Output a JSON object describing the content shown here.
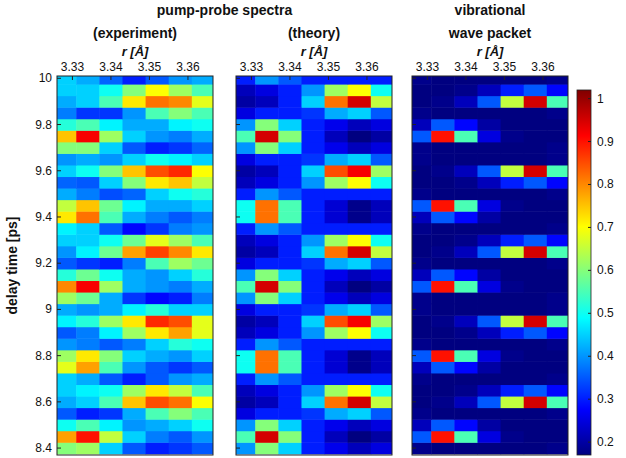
{
  "chart_data": {
    "type": "heatmap",
    "title": "pump-probe spectra",
    "y_label": "delay time [ps]",
    "xlim": [
      3.326,
      3.3665
    ],
    "xticks": [
      3.33,
      3.34,
      3.35,
      3.36
    ],
    "ylim": [
      8.37,
      10.01
    ],
    "yticks": [
      8.4,
      8.6,
      8.8,
      9,
      9.2,
      9.4,
      9.6,
      9.8,
      10
    ],
    "tick_labels": true,
    "colorbar": {
      "lim": [
        0.17,
        1.02
      ],
      "ticks": [
        0.2,
        0.3,
        0.4,
        0.5,
        0.6,
        0.7,
        0.8,
        0.9,
        1
      ]
    },
    "x": [
      3.328,
      3.334,
      3.34,
      3.346,
      3.352,
      3.358,
      3.364
    ],
    "y": [
      8.4,
      8.45,
      8.5,
      8.55,
      8.6,
      8.65,
      8.7,
      8.75,
      8.8,
      8.85,
      8.9,
      8.95,
      9.0,
      9.05,
      9.1,
      9.15,
      9.2,
      9.25,
      9.3,
      9.35,
      9.4,
      9.45,
      9.5,
      9.55,
      9.6,
      9.65,
      9.7,
      9.75,
      9.8,
      9.85,
      9.9,
      9.95,
      10.0
    ],
    "panels": [
      {
        "title": "(experiment)",
        "x_label": "r [Å]",
        "cells": [
          [
            0.6,
            0.62,
            0.45,
            0.35,
            0.3,
            0.32,
            0.35
          ],
          [
            0.78,
            0.9,
            0.65,
            0.45,
            0.38,
            0.35,
            0.4
          ],
          [
            0.5,
            0.55,
            0.48,
            0.4,
            0.42,
            0.45,
            0.5
          ],
          [
            0.35,
            0.3,
            0.32,
            0.42,
            0.55,
            0.6,
            0.55
          ],
          [
            0.42,
            0.45,
            0.55,
            0.75,
            0.85,
            0.82,
            0.7
          ],
          [
            0.45,
            0.48,
            0.5,
            0.62,
            0.72,
            0.65,
            0.55
          ],
          [
            0.45,
            0.42,
            0.35,
            0.3,
            0.35,
            0.4,
            0.42
          ],
          [
            0.68,
            0.78,
            0.55,
            0.4,
            0.35,
            0.32,
            0.35
          ],
          [
            0.62,
            0.72,
            0.6,
            0.45,
            0.42,
            0.4,
            0.45
          ],
          [
            0.4,
            0.38,
            0.35,
            0.38,
            0.45,
            0.52,
            0.5
          ],
          [
            0.35,
            0.38,
            0.48,
            0.62,
            0.72,
            0.78,
            0.68
          ],
          [
            0.48,
            0.52,
            0.62,
            0.72,
            0.88,
            0.85,
            0.68
          ],
          [
            0.42,
            0.4,
            0.42,
            0.48,
            0.52,
            0.45,
            0.45
          ],
          [
            0.62,
            0.58,
            0.42,
            0.32,
            0.28,
            0.3,
            0.38
          ],
          [
            0.8,
            0.92,
            0.62,
            0.42,
            0.4,
            0.38,
            0.42
          ],
          [
            0.52,
            0.58,
            0.5,
            0.42,
            0.4,
            0.45,
            0.52
          ],
          [
            0.35,
            0.32,
            0.3,
            0.38,
            0.55,
            0.62,
            0.58
          ],
          [
            0.4,
            0.48,
            0.58,
            0.78,
            0.86,
            0.8,
            0.72
          ],
          [
            0.45,
            0.45,
            0.5,
            0.58,
            0.68,
            0.62,
            0.55
          ],
          [
            0.48,
            0.45,
            0.35,
            0.28,
            0.32,
            0.38,
            0.4
          ],
          [
            0.72,
            0.82,
            0.55,
            0.42,
            0.38,
            0.35,
            0.38
          ],
          [
            0.65,
            0.75,
            0.58,
            0.48,
            0.42,
            0.42,
            0.45
          ],
          [
            0.42,
            0.38,
            0.34,
            0.36,
            0.45,
            0.5,
            0.52
          ],
          [
            0.36,
            0.35,
            0.45,
            0.6,
            0.72,
            0.75,
            0.65
          ],
          [
            0.45,
            0.5,
            0.6,
            0.75,
            0.85,
            0.88,
            0.7
          ],
          [
            0.4,
            0.42,
            0.4,
            0.45,
            0.5,
            0.48,
            0.45
          ],
          [
            0.6,
            0.6,
            0.45,
            0.35,
            0.3,
            0.32,
            0.36
          ],
          [
            0.75,
            0.92,
            0.62,
            0.45,
            0.4,
            0.38,
            0.42
          ],
          [
            0.52,
            0.55,
            0.48,
            0.42,
            0.42,
            0.48,
            0.5
          ],
          [
            0.38,
            0.32,
            0.32,
            0.4,
            0.55,
            0.6,
            0.55
          ],
          [
            0.42,
            0.45,
            0.55,
            0.72,
            0.82,
            0.8,
            0.68
          ],
          [
            0.45,
            0.45,
            0.5,
            0.6,
            0.7,
            0.62,
            0.55
          ],
          [
            0.45,
            0.42,
            0.36,
            0.3,
            0.35,
            0.4,
            0.42
          ]
        ]
      },
      {
        "title": "(theory)",
        "x_label": "r [Å]",
        "cells": [
          [
            0.4,
            0.6,
            0.45,
            0.3,
            0.26,
            0.22,
            0.25
          ],
          [
            0.55,
            0.95,
            0.6,
            0.3,
            0.22,
            0.15,
            0.2
          ],
          [
            0.4,
            0.6,
            0.45,
            0.3,
            0.26,
            0.22,
            0.25
          ],
          [
            0.25,
            0.3,
            0.3,
            0.32,
            0.42,
            0.45,
            0.35
          ],
          [
            0.2,
            0.22,
            0.3,
            0.45,
            0.82,
            0.95,
            0.65
          ],
          [
            0.22,
            0.25,
            0.3,
            0.4,
            0.62,
            0.7,
            0.5
          ],
          [
            0.3,
            0.4,
            0.35,
            0.3,
            0.3,
            0.3,
            0.3
          ],
          [
            0.5,
            0.82,
            0.55,
            0.3,
            0.24,
            0.18,
            0.22
          ],
          [
            0.5,
            0.82,
            0.55,
            0.3,
            0.24,
            0.18,
            0.22
          ],
          [
            0.3,
            0.4,
            0.35,
            0.3,
            0.3,
            0.3,
            0.3
          ],
          [
            0.22,
            0.25,
            0.3,
            0.4,
            0.62,
            0.7,
            0.5
          ],
          [
            0.2,
            0.22,
            0.3,
            0.45,
            0.85,
            0.92,
            0.62
          ],
          [
            0.25,
            0.3,
            0.3,
            0.32,
            0.42,
            0.45,
            0.35
          ],
          [
            0.4,
            0.6,
            0.45,
            0.3,
            0.26,
            0.22,
            0.25
          ],
          [
            0.55,
            0.95,
            0.6,
            0.3,
            0.22,
            0.15,
            0.2
          ],
          [
            0.4,
            0.6,
            0.45,
            0.3,
            0.26,
            0.22,
            0.25
          ],
          [
            0.25,
            0.3,
            0.3,
            0.32,
            0.42,
            0.45,
            0.35
          ],
          [
            0.2,
            0.22,
            0.3,
            0.45,
            0.82,
            0.95,
            0.65
          ],
          [
            0.22,
            0.25,
            0.3,
            0.4,
            0.62,
            0.7,
            0.5
          ],
          [
            0.3,
            0.4,
            0.35,
            0.3,
            0.3,
            0.3,
            0.3
          ],
          [
            0.5,
            0.82,
            0.55,
            0.3,
            0.24,
            0.18,
            0.22
          ],
          [
            0.5,
            0.82,
            0.55,
            0.3,
            0.24,
            0.18,
            0.22
          ],
          [
            0.3,
            0.4,
            0.35,
            0.3,
            0.3,
            0.3,
            0.3
          ],
          [
            0.22,
            0.25,
            0.3,
            0.4,
            0.62,
            0.7,
            0.5
          ],
          [
            0.2,
            0.22,
            0.3,
            0.45,
            0.85,
            0.92,
            0.62
          ],
          [
            0.25,
            0.3,
            0.3,
            0.32,
            0.42,
            0.45,
            0.35
          ],
          [
            0.4,
            0.6,
            0.45,
            0.3,
            0.26,
            0.22,
            0.25
          ],
          [
            0.55,
            0.95,
            0.6,
            0.3,
            0.22,
            0.15,
            0.2
          ],
          [
            0.4,
            0.6,
            0.45,
            0.3,
            0.26,
            0.22,
            0.25
          ],
          [
            0.25,
            0.3,
            0.3,
            0.32,
            0.42,
            0.45,
            0.35
          ],
          [
            0.2,
            0.22,
            0.3,
            0.45,
            0.82,
            0.95,
            0.65
          ],
          [
            0.22,
            0.25,
            0.3,
            0.4,
            0.62,
            0.7,
            0.5
          ],
          [
            0.3,
            0.4,
            0.35,
            0.3,
            0.3,
            0.3,
            0.3
          ]
        ]
      },
      {
        "title": "vibrational wave packet",
        "x_label": "r [Å]",
        "cells": [
          [
            0.18,
            0.17,
            0.16,
            0.16,
            0.16,
            0.17,
            0.18
          ],
          [
            0.35,
            0.9,
            0.55,
            0.25,
            0.18,
            0.16,
            0.16
          ],
          [
            0.22,
            0.35,
            0.28,
            0.2,
            0.17,
            0.16,
            0.16
          ],
          [
            0.18,
            0.17,
            0.16,
            0.16,
            0.16,
            0.17,
            0.18
          ],
          [
            0.16,
            0.18,
            0.22,
            0.35,
            0.65,
            0.95,
            0.55
          ],
          [
            0.16,
            0.17,
            0.18,
            0.22,
            0.3,
            0.35,
            0.28
          ],
          [
            0.18,
            0.17,
            0.16,
            0.16,
            0.16,
            0.17,
            0.18
          ],
          [
            0.22,
            0.35,
            0.28,
            0.2,
            0.17,
            0.16,
            0.16
          ],
          [
            0.35,
            0.9,
            0.55,
            0.25,
            0.18,
            0.16,
            0.16
          ],
          [
            0.18,
            0.17,
            0.16,
            0.16,
            0.16,
            0.17,
            0.18
          ],
          [
            0.16,
            0.17,
            0.18,
            0.22,
            0.3,
            0.35,
            0.28
          ],
          [
            0.16,
            0.18,
            0.22,
            0.35,
            0.65,
            0.95,
            0.55
          ],
          [
            0.18,
            0.17,
            0.16,
            0.16,
            0.16,
            0.17,
            0.18
          ],
          [
            0.18,
            0.17,
            0.16,
            0.16,
            0.16,
            0.17,
            0.18
          ],
          [
            0.35,
            0.9,
            0.55,
            0.25,
            0.18,
            0.16,
            0.16
          ],
          [
            0.22,
            0.35,
            0.28,
            0.2,
            0.17,
            0.16,
            0.16
          ],
          [
            0.18,
            0.17,
            0.16,
            0.16,
            0.16,
            0.17,
            0.18
          ],
          [
            0.16,
            0.18,
            0.22,
            0.35,
            0.65,
            0.95,
            0.55
          ],
          [
            0.16,
            0.17,
            0.18,
            0.22,
            0.3,
            0.35,
            0.28
          ],
          [
            0.18,
            0.17,
            0.16,
            0.16,
            0.16,
            0.17,
            0.18
          ],
          [
            0.22,
            0.35,
            0.28,
            0.2,
            0.17,
            0.16,
            0.16
          ],
          [
            0.35,
            0.9,
            0.55,
            0.25,
            0.18,
            0.16,
            0.16
          ],
          [
            0.18,
            0.17,
            0.16,
            0.16,
            0.16,
            0.17,
            0.18
          ],
          [
            0.16,
            0.17,
            0.18,
            0.22,
            0.3,
            0.35,
            0.28
          ],
          [
            0.16,
            0.18,
            0.22,
            0.35,
            0.65,
            0.95,
            0.55
          ],
          [
            0.18,
            0.17,
            0.16,
            0.16,
            0.16,
            0.17,
            0.18
          ],
          [
            0.18,
            0.17,
            0.16,
            0.16,
            0.16,
            0.17,
            0.18
          ],
          [
            0.35,
            0.9,
            0.55,
            0.25,
            0.18,
            0.16,
            0.16
          ],
          [
            0.22,
            0.35,
            0.28,
            0.2,
            0.17,
            0.16,
            0.16
          ],
          [
            0.18,
            0.17,
            0.16,
            0.16,
            0.16,
            0.17,
            0.18
          ],
          [
            0.16,
            0.18,
            0.22,
            0.35,
            0.65,
            0.95,
            0.55
          ],
          [
            0.16,
            0.17,
            0.18,
            0.22,
            0.3,
            0.35,
            0.28
          ],
          [
            0.18,
            0.17,
            0.16,
            0.16,
            0.16,
            0.17,
            0.18
          ]
        ]
      }
    ]
  }
}
